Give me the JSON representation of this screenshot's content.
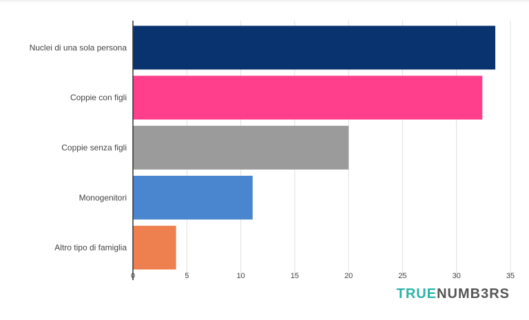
{
  "chart_data": {
    "type": "bar",
    "orientation": "horizontal",
    "title": "",
    "xlabel": "",
    "ylabel": "",
    "categories": [
      "Nuclei di una sola persona",
      "Coppie con figli",
      "Coppie senza figli",
      "Monogenitori",
      "Altro tipo di famiglia"
    ],
    "values": [
      33.6,
      32.4,
      20.0,
      11.1,
      4.0
    ],
    "bar_colors": [
      "#08336f",
      "#ff3e8c",
      "#9b9b9b",
      "#4a86cf",
      "#ee8050"
    ],
    "xlim": [
      0,
      35
    ],
    "xticks": [
      "0",
      "5",
      "10",
      "15",
      "20",
      "25",
      "30",
      "35"
    ],
    "grid": "vertical",
    "legend": "none"
  },
  "brand": {
    "part1": "TRUE",
    "part2": "NUMB3RS"
  }
}
